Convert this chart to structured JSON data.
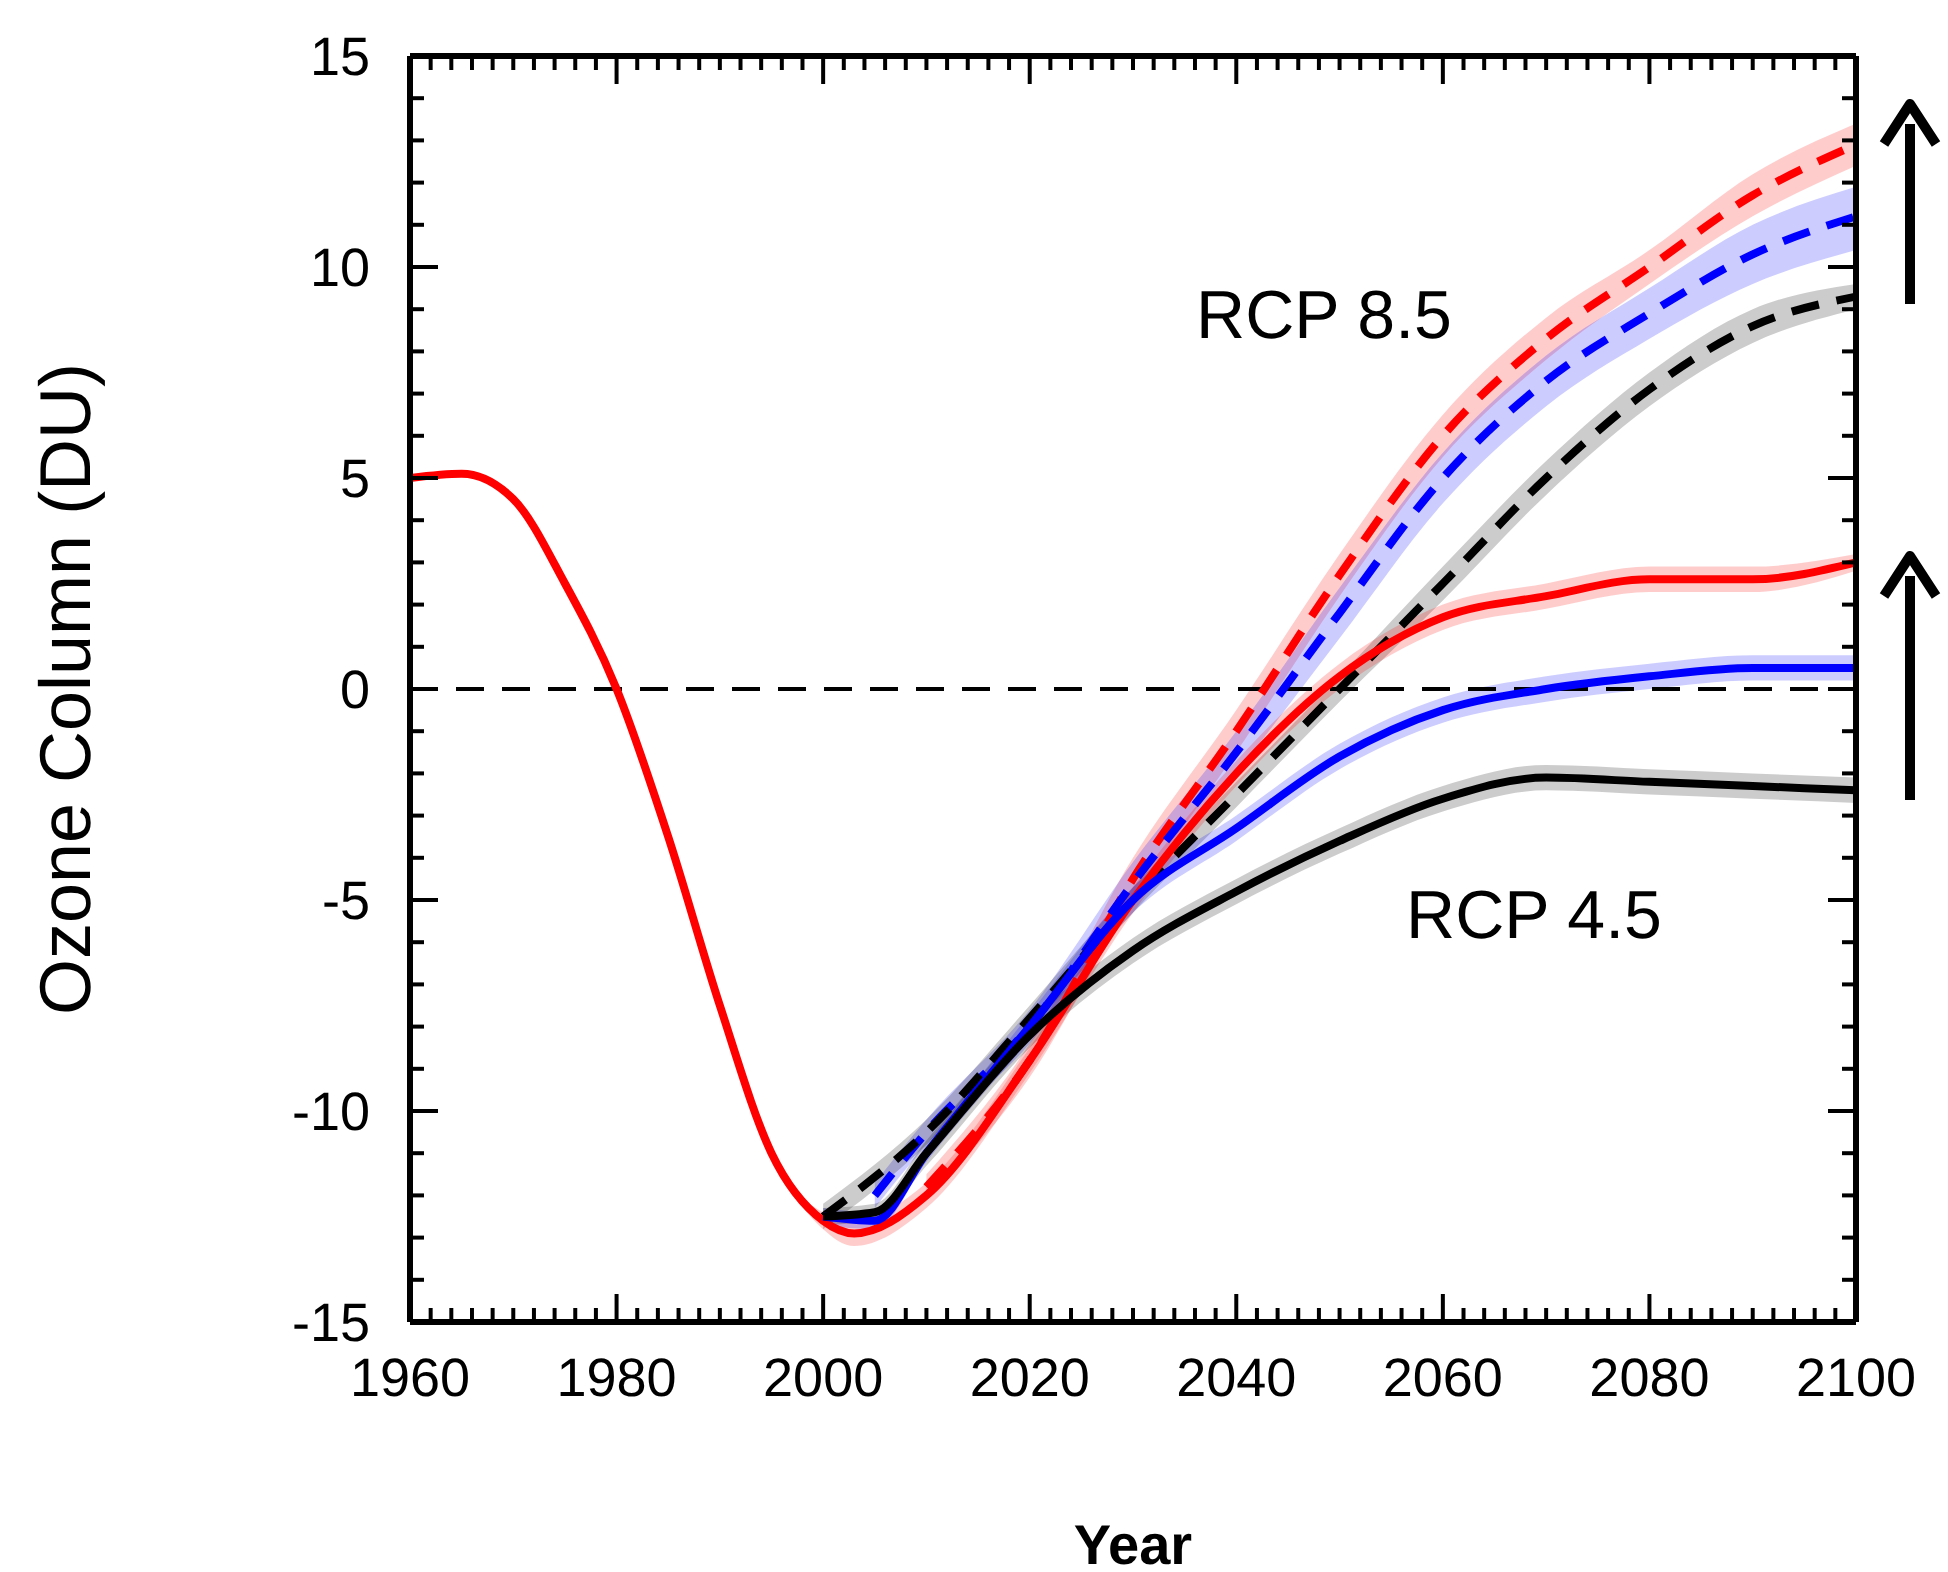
{
  "chart_data": {
    "type": "line",
    "xlabel": "Year",
    "ylabel": "Ozone Column (DU)",
    "xlim": [
      1960,
      2100
    ],
    "xticks": [
      1960,
      1980,
      2000,
      2020,
      2040,
      2060,
      2080,
      2100
    ],
    "ylim": [
      -15,
      15
    ],
    "yticks": [
      -15,
      -10,
      -5,
      0,
      5,
      10,
      15
    ],
    "ref_lines": [
      {
        "axis": "y",
        "value": 0,
        "color": "#000000",
        "line_style": "dashed"
      }
    ],
    "annotations": [
      "RCP 8.5",
      "RCP 4.5"
    ],
    "series": [
      {
        "color": "#ff0000",
        "line_style": "dashed",
        "x": [
          2010,
          2020,
          2030,
          2040,
          2050,
          2060,
          2070,
          2080,
          2090,
          2100
        ],
        "values": [
          -11.8,
          -8.8,
          -4.5,
          -1,
          2.7,
          6,
          8.3,
          10,
          11.7,
          12.9
        ],
        "lower": [
          -12.1,
          -9.2,
          -5,
          -1.5,
          2.2,
          5.5,
          7.8,
          9.6,
          11.2,
          12.4
        ],
        "upper": [
          -11.5,
          -8.4,
          -4,
          -0.5,
          3.2,
          6.5,
          8.8,
          10.4,
          12.2,
          13.4
        ]
      },
      {
        "color": "#0000ff",
        "line_style": "dashed",
        "x": [
          2005,
          2010,
          2020,
          2030,
          2040,
          2050,
          2060,
          2070,
          2080,
          2090,
          2100
        ],
        "values": [
          -12,
          -10.5,
          -8,
          -4.6,
          -1.5,
          1.8,
          5,
          7.3,
          8.9,
          10.3,
          11.2
        ],
        "lower": [
          -12.3,
          -10.8,
          -8.4,
          -5.1,
          -2,
          1.2,
          4.4,
          6.7,
          8.3,
          9.6,
          10.4
        ],
        "upper": [
          -11.7,
          -10.2,
          -7.6,
          -4.1,
          -1,
          2.4,
          5.6,
          7.9,
          9.5,
          11,
          11.9
        ]
      },
      {
        "color": "#000000",
        "line_style": "dashed",
        "x": [
          2000,
          2010,
          2020,
          2030,
          2040,
          2050,
          2060,
          2070,
          2080,
          2090,
          2100
        ],
        "values": [
          -12.5,
          -10.5,
          -7.8,
          -5,
          -2.5,
          0,
          2.5,
          5,
          7.1,
          8.6,
          9.3
        ],
        "lower": [
          -12.8,
          -10.8,
          -8.1,
          -5.3,
          -2.8,
          -0.3,
          2.1,
          4.6,
          6.7,
          8.2,
          9
        ],
        "upper": [
          -12.2,
          -10.2,
          -7.5,
          -4.7,
          -2.2,
          0.3,
          2.9,
          5.4,
          7.5,
          9,
          9.6
        ]
      },
      {
        "color": "#ff0000",
        "line_style": "solid",
        "x": [
          1960,
          1965,
          1970,
          1975,
          1980,
          1985,
          1990,
          1995,
          2000,
          2003,
          2010,
          2020,
          2030,
          2040,
          2050,
          2060,
          2070,
          2080,
          2090,
          2100
        ],
        "values": [
          5,
          5.1,
          4.5,
          2.5,
          0,
          -3.5,
          -7.5,
          -11,
          -12.6,
          -12.9,
          -12,
          -8.8,
          -5,
          -2,
          0.3,
          1.7,
          2.2,
          2.6,
          2.6,
          3
        ],
        "lower": [
          5,
          5.1,
          4.5,
          2.5,
          0,
          -3.5,
          -7.5,
          -11,
          -12.8,
          -13.2,
          -12.3,
          -9.1,
          -5.3,
          -2.3,
          0,
          1.4,
          1.9,
          2.3,
          2.3,
          2.8
        ],
        "upper": [
          5,
          5.1,
          4.5,
          2.5,
          0,
          -3.5,
          -7.5,
          -11,
          -12.4,
          -12.6,
          -11.7,
          -8.5,
          -4.7,
          -1.7,
          0.6,
          2,
          2.5,
          2.9,
          2.9,
          3.2
        ]
      },
      {
        "color": "#0000ff",
        "line_style": "solid",
        "x": [
          2000,
          2005,
          2010,
          2020,
          2030,
          2040,
          2050,
          2060,
          2070,
          2080,
          2090,
          2100
        ],
        "values": [
          -12.5,
          -12.6,
          -11,
          -8,
          -5,
          -3.3,
          -1.6,
          -0.5,
          0,
          0.3,
          0.5,
          0.5
        ],
        "lower": [
          -12.7,
          -12.8,
          -11.2,
          -8.3,
          -5.3,
          -3.6,
          -1.9,
          -0.8,
          -0.3,
          0,
          0.2,
          0.2
        ],
        "upper": [
          -12.3,
          -12.4,
          -10.8,
          -7.7,
          -4.7,
          -3,
          -1.3,
          -0.2,
          0.3,
          0.6,
          0.8,
          0.8
        ]
      },
      {
        "color": "#000000",
        "line_style": "solid",
        "x": [
          2000,
          2005,
          2010,
          2020,
          2030,
          2040,
          2050,
          2060,
          2070,
          2080,
          2090,
          2100
        ],
        "values": [
          -12.5,
          -12.4,
          -11,
          -8.2,
          -6.2,
          -4.8,
          -3.6,
          -2.6,
          -2.1,
          -2.2,
          -2.3,
          -2.4
        ],
        "lower": [
          -12.7,
          -12.6,
          -11.3,
          -8.5,
          -6.5,
          -5.1,
          -3.9,
          -2.9,
          -2.4,
          -2.5,
          -2.6,
          -2.7
        ],
        "upper": [
          -12.3,
          -12.2,
          -10.7,
          -7.9,
          -5.9,
          -4.5,
          -3.3,
          -2.3,
          -1.8,
          -1.9,
          -2,
          -2.1
        ]
      }
    ]
  }
}
